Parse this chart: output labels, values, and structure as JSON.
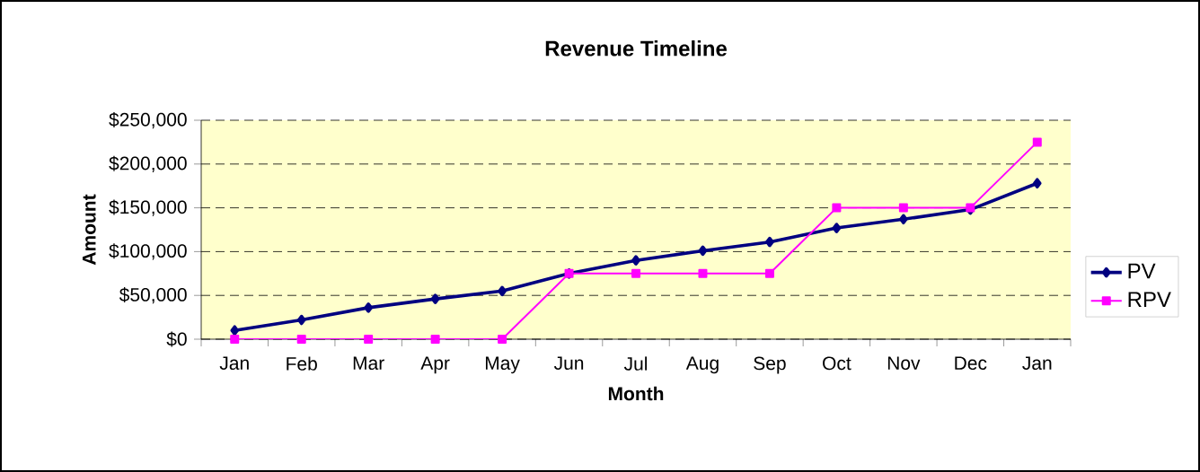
{
  "chart_data": {
    "type": "line",
    "title": "Revenue Timeline",
    "xlabel": "Month",
    "ylabel": "Amount",
    "categories": [
      "Jan",
      "Feb",
      "Mar",
      "Apr",
      "May",
      "Jun",
      "Jul",
      "Aug",
      "Sep",
      "Oct",
      "Nov",
      "Dec",
      "Jan"
    ],
    "series": [
      {
        "name": "PV",
        "color": "#000080",
        "marker": "diamond",
        "values": [
          10000,
          22000,
          36000,
          46000,
          55000,
          75000,
          90000,
          101000,
          111000,
          127000,
          137000,
          148000,
          178000
        ]
      },
      {
        "name": "RPV",
        "color": "#ff00ff",
        "marker": "square",
        "values": [
          0,
          0,
          0,
          0,
          0,
          75000,
          75000,
          75000,
          75000,
          150000,
          150000,
          150000,
          225000
        ]
      }
    ],
    "ylim": [
      0,
      250000
    ],
    "yticks": [
      {
        "value": 0,
        "label": "$0"
      },
      {
        "value": 50000,
        "label": "$50,000"
      },
      {
        "value": 100000,
        "label": "$100,000"
      },
      {
        "value": 150000,
        "label": "$150,000"
      },
      {
        "value": 200000,
        "label": "$200,000"
      },
      {
        "value": 250000,
        "label": "$250,000"
      }
    ],
    "grid": "y",
    "legend": "right"
  }
}
